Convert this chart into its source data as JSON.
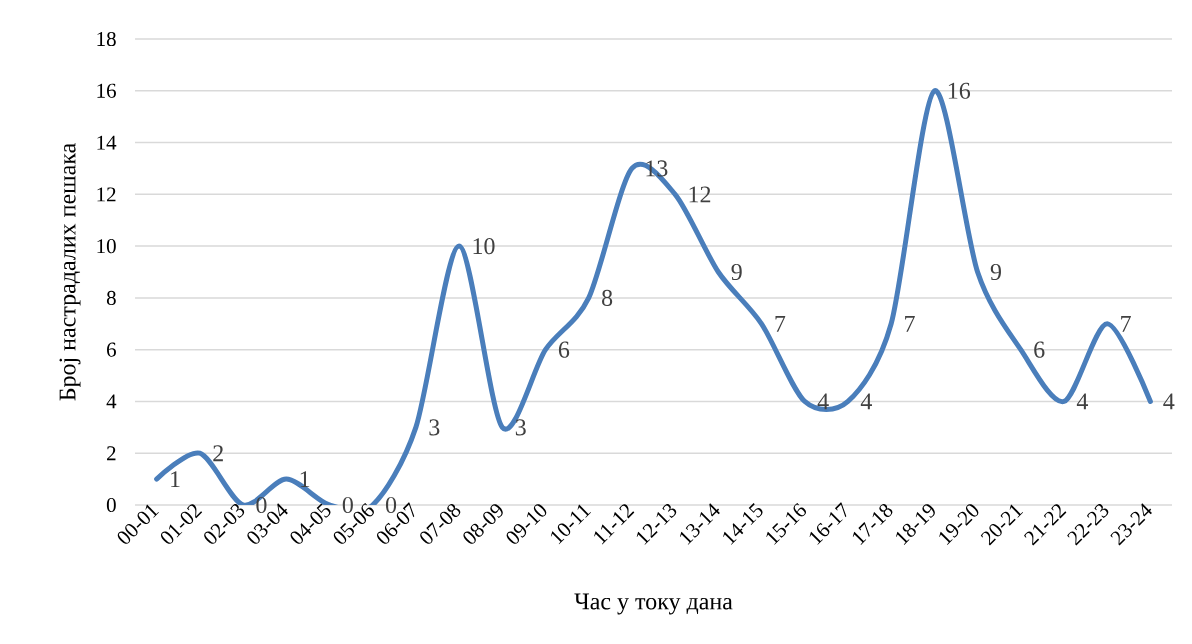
{
  "chart_data": {
    "type": "line",
    "xlabel": "Час у току дана",
    "ylabel": "Број настрадалих пешака",
    "categories": [
      "00-01",
      "01-02",
      "02-03",
      "03-04",
      "04-05",
      "05-06",
      "06-07",
      "07-08",
      "08-09",
      "09-10",
      "10-11",
      "11-12",
      "12-13",
      "13-14",
      "14-15",
      "15-16",
      "16-17",
      "17-18",
      "18-19",
      "19-20",
      "20-21",
      "21-22",
      "22-23",
      "23-24"
    ],
    "values": [
      1,
      2,
      0,
      1,
      0,
      0,
      3,
      10,
      3,
      6,
      8,
      13,
      12,
      9,
      7,
      4,
      4,
      7,
      16,
      9,
      6,
      4,
      7,
      4
    ],
    "color": "#4a7ebb",
    "ylim": [
      0,
      18
    ],
    "yticks": [
      0,
      2,
      4,
      6,
      8,
      10,
      12,
      14,
      16,
      18
    ],
    "grid": "y",
    "data_labels": true,
    "marker": "none",
    "line_style": "solid"
  }
}
